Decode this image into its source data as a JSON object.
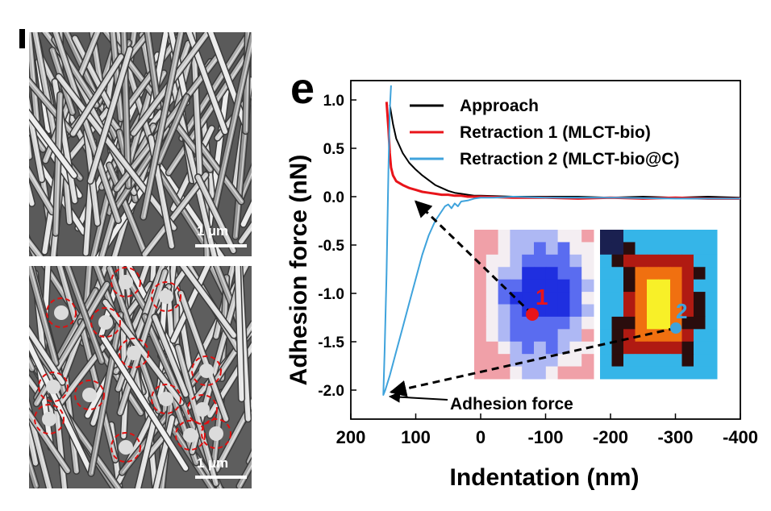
{
  "figure": {
    "left_panel": {
      "top_scale_label": "1 µm",
      "bottom_scale_label": "1 µm"
    },
    "panel_label": "e"
  },
  "chart_data": {
    "type": "line",
    "title": "",
    "xlabel": "Indentation (nm)",
    "ylabel": "Adhesion force (nN)",
    "xlim": [
      200,
      -400
    ],
    "ylim": [
      -2.3,
      1.2
    ],
    "x_reversed": true,
    "xticks": [
      200,
      100,
      0,
      -100,
      -200,
      -300,
      -400
    ],
    "xtick_labels": [
      "200",
      "100",
      "0",
      "-100",
      "-200",
      "-300",
      "-400"
    ],
    "yticks": [
      1.0,
      0.5,
      0.0,
      -0.5,
      -1.0,
      -1.5,
      -2.0
    ],
    "ytick_labels": [
      "1.0",
      "0.5",
      "0.0",
      "-0.5",
      "-1.0",
      "-1.5",
      "-2.0"
    ],
    "legend_position": "top-right",
    "series": [
      {
        "name": "Approach",
        "color": "#000000",
        "x": [
          140,
          135,
          130,
          120,
          110,
          100,
          90,
          80,
          70,
          60,
          50,
          40,
          30,
          20,
          10,
          0,
          -50,
          -100,
          -150,
          -200,
          -250,
          -300,
          -350,
          -400
        ],
        "y": [
          0.95,
          0.75,
          0.6,
          0.45,
          0.35,
          0.28,
          0.22,
          0.17,
          0.12,
          0.09,
          0.06,
          0.04,
          0.03,
          0.02,
          0.01,
          0.01,
          0.0,
          0.0,
          0.0,
          -0.01,
          0.0,
          -0.01,
          0.0,
          -0.01
        ]
      },
      {
        "name": "Retraction 1 (MLCT-bio)",
        "color": "#e8141a",
        "x": [
          145,
          142,
          140,
          138,
          135,
          130,
          120,
          110,
          100,
          90,
          80,
          70,
          60,
          50,
          40,
          30,
          20,
          10,
          0,
          -50,
          -100,
          -150,
          -200,
          -250,
          -300,
          -350,
          -400
        ],
        "y": [
          0.98,
          0.7,
          0.45,
          0.3,
          0.22,
          0.16,
          0.12,
          0.09,
          0.07,
          0.05,
          0.04,
          0.03,
          0.02,
          0.02,
          0.01,
          0.01,
          0.0,
          0.0,
          0.0,
          -0.01,
          -0.01,
          -0.02,
          -0.01,
          -0.02,
          -0.01,
          -0.02,
          -0.02
        ]
      },
      {
        "name": "Retraction 2 (MLCT-bio@C)",
        "color": "#3fa3dc",
        "x": [
          138,
          140,
          142,
          145,
          148,
          150,
          147,
          140,
          130,
          120,
          110,
          100,
          90,
          80,
          70,
          60,
          55,
          50,
          45,
          40,
          35,
          30,
          20,
          10,
          0,
          -20,
          -50,
          -100,
          -200,
          -300,
          -400
        ],
        "y": [
          1.15,
          0.9,
          0.3,
          -0.8,
          -1.6,
          -2.05,
          -2.0,
          -1.85,
          -1.6,
          -1.35,
          -1.1,
          -0.85,
          -0.6,
          -0.4,
          -0.25,
          -0.15,
          -0.1,
          -0.08,
          -0.12,
          -0.07,
          -0.1,
          -0.05,
          -0.04,
          -0.02,
          -0.01,
          -0.01,
          0.0,
          -0.01,
          -0.01,
          -0.02,
          -0.02
        ]
      }
    ],
    "annotations": {
      "adhesion_label": "Adhesion force",
      "point_1_label": "1",
      "point_2_label": "2"
    }
  }
}
